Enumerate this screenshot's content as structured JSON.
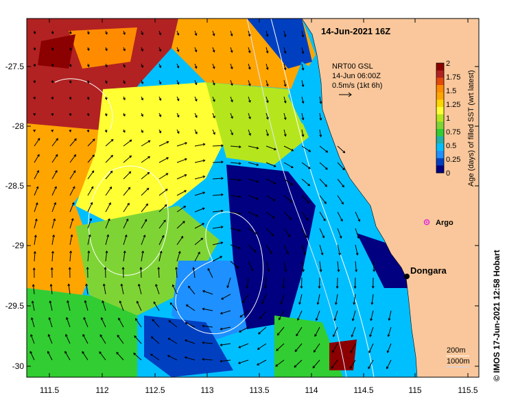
{
  "map": {
    "title": "14-Jun-2021 16Z",
    "lon_ticks": [
      "111.5",
      "112",
      "112.5",
      "113",
      "113.5",
      "114",
      "114.5",
      "115",
      "115.5"
    ],
    "lat_ticks": [
      "-27.5",
      "-28",
      "-28.5",
      "-29",
      "-29.5",
      "-30"
    ],
    "current_legend": {
      "line1": "NRT00 GSL",
      "line2": "14-Jun 06:00Z",
      "line3": "0.5m/s (1kt 6h)"
    },
    "places": {
      "argo": "Argo",
      "dongara": "Dongara"
    },
    "depth_legend": {
      "line1": "200m",
      "line2": "1000m"
    },
    "credit": "© IMOS 17-Jun-2021 12:58 Hobart",
    "colorbar": {
      "title": "Age (days) of filled SST (wrt latest)",
      "ticks": [
        "2",
        "1.75",
        "1.5",
        "1.25",
        "1",
        "0.75",
        "0.5",
        "0.25",
        "0"
      ],
      "colors": [
        "#8b0000",
        "#b22222",
        "#e34a0a",
        "#ff8c00",
        "#ffa500",
        "#ffd700",
        "#ffff33",
        "#b5e61d",
        "#7fd435",
        "#32cd32",
        "#20b2aa",
        "#00bfff",
        "#1e90ff",
        "#0040c0",
        "#000080"
      ]
    },
    "land_color": "#f9c79b",
    "argo_color": "#e020e0"
  }
}
